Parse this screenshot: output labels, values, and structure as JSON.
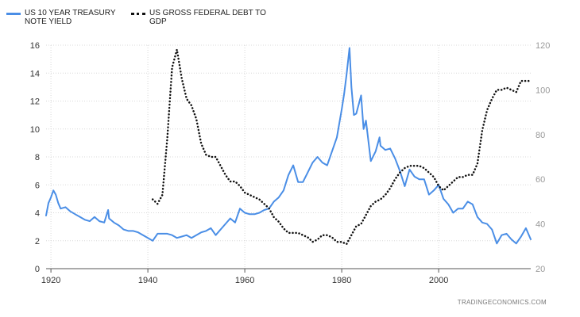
{
  "chart_data": {
    "type": "line",
    "title": "",
    "xlabel": "",
    "ylabel": "",
    "xlim": [
      1919,
      2019
    ],
    "ylim_left": [
      0,
      16
    ],
    "ylim_right": [
      20,
      120
    ],
    "x_ticks": [
      "1920",
      "1940",
      "1960",
      "1980",
      "2000"
    ],
    "y_ticks_left": [
      "0",
      "2",
      "4",
      "6",
      "8",
      "10",
      "12",
      "14",
      "16"
    ],
    "y_ticks_right": [
      "20",
      "40",
      "60",
      "80",
      "100",
      "120"
    ],
    "grid": true,
    "legend_position": "top-left",
    "series": [
      {
        "name": "US 10 YEAR TREASURY NOTE YIELD",
        "axis": "left",
        "color": "#4a8ee6",
        "style": "solid",
        "x": [
          1919,
          1919.5,
          1920,
          1920.5,
          1921,
          1921.5,
          1922,
          1923,
          1924,
          1925,
          1926,
          1927,
          1928,
          1929,
          1930,
          1931,
          1931.8,
          1932,
          1933,
          1934,
          1935,
          1936,
          1937,
          1938,
          1939,
          1940,
          1941,
          1942,
          1943,
          1944,
          1945,
          1946,
          1947,
          1948,
          1949,
          1950,
          1951,
          1952,
          1953,
          1954,
          1955,
          1956,
          1957,
          1958,
          1959,
          1960,
          1961,
          1962,
          1963,
          1964,
          1965,
          1966,
          1967,
          1968,
          1969,
          1970,
          1971,
          1972,
          1973,
          1974,
          1975,
          1976,
          1977,
          1978,
          1979,
          1980,
          1980.5,
          1981,
          1981.6,
          1982,
          1982.5,
          1983,
          1984,
          1984.5,
          1985,
          1986,
          1987,
          1987.8,
          1988,
          1989,
          1990,
          1991,
          1992,
          1993,
          1994,
          1995,
          1996,
          1997,
          1998,
          1999,
          2000,
          2001,
          2002,
          2003,
          2004,
          2005,
          2006,
          2007,
          2008,
          2009,
          2010,
          2011,
          2012,
          2013,
          2014,
          2015,
          2016,
          2017,
          2018,
          2019
        ],
        "y": [
          3.8,
          4.7,
          5.1,
          5.6,
          5.3,
          4.7,
          4.3,
          4.4,
          4.1,
          3.9,
          3.7,
          3.5,
          3.4,
          3.7,
          3.4,
          3.3,
          4.2,
          3.6,
          3.3,
          3.1,
          2.8,
          2.7,
          2.7,
          2.6,
          2.4,
          2.2,
          2.0,
          2.5,
          2.5,
          2.5,
          2.4,
          2.2,
          2.3,
          2.4,
          2.2,
          2.4,
          2.6,
          2.7,
          2.9,
          2.4,
          2.8,
          3.2,
          3.6,
          3.3,
          4.3,
          4.0,
          3.9,
          3.9,
          4.0,
          4.2,
          4.3,
          4.8,
          5.1,
          5.6,
          6.7,
          7.4,
          6.2,
          6.2,
          6.9,
          7.6,
          8.0,
          7.6,
          7.4,
          8.4,
          9.4,
          11.4,
          12.5,
          13.9,
          15.8,
          13.0,
          11.0,
          11.1,
          12.4,
          10.0,
          10.6,
          7.7,
          8.4,
          9.4,
          8.8,
          8.5,
          8.6,
          7.9,
          7.0,
          5.9,
          7.1,
          6.6,
          6.4,
          6.4,
          5.3,
          5.6,
          6.0,
          5.0,
          4.6,
          4.0,
          4.3,
          4.3,
          4.8,
          4.6,
          3.7,
          3.3,
          3.2,
          2.8,
          1.8,
          2.4,
          2.5,
          2.1,
          1.8,
          2.3,
          2.9,
          2.1
        ]
      },
      {
        "name": "US GROSS FEDERAL DEBT TO GDP",
        "axis": "right",
        "color": "#111111",
        "style": "dotted",
        "x": [
          1941,
          1942,
          1943,
          1944,
          1945,
          1946,
          1947,
          1948,
          1949,
          1950,
          1951,
          1952,
          1953,
          1954,
          1955,
          1956,
          1957,
          1958,
          1959,
          1960,
          1961,
          1962,
          1963,
          1964,
          1965,
          1966,
          1967,
          1968,
          1969,
          1970,
          1971,
          1972,
          1973,
          1974,
          1975,
          1976,
          1977,
          1978,
          1979,
          1980,
          1981,
          1982,
          1983,
          1984,
          1985,
          1986,
          1987,
          1988,
          1989,
          1990,
          1991,
          1992,
          1993,
          1994,
          1995,
          1996,
          1997,
          1998,
          1999,
          2000,
          2001,
          2002,
          2003,
          2004,
          2005,
          2006,
          2007,
          2008,
          2009,
          2010,
          2011,
          2012,
          2013,
          2014,
          2015,
          2016,
          2017,
          2018,
          2019
        ],
        "y": [
          51,
          49,
          53,
          78,
          110,
          118,
          105,
          96,
          93,
          87,
          76,
          71,
          70,
          70,
          66,
          62,
          59,
          59,
          57,
          54,
          53,
          52,
          51,
          49,
          47,
          43,
          41,
          38,
          36,
          36,
          36,
          35,
          34,
          32,
          33,
          35,
          35,
          34,
          32,
          32,
          31,
          35,
          39,
          40,
          44,
          48,
          50,
          51,
          53,
          56,
          60,
          63,
          65,
          66,
          66,
          66,
          65,
          63,
          61,
          57,
          55,
          57,
          59,
          61,
          61,
          62,
          62,
          67,
          82,
          91,
          96,
          100,
          100,
          101,
          100,
          99,
          104,
          104,
          104
        ]
      }
    ]
  },
  "source_label": "TRADINGECONOMICS.COM"
}
